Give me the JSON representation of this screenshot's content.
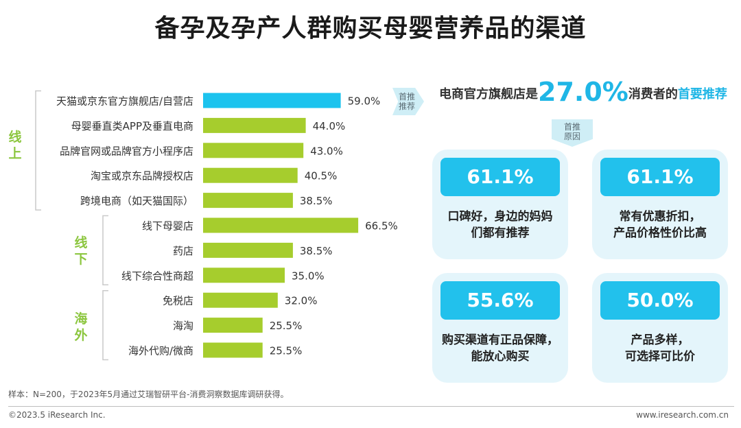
{
  "title": "备孕及孕产人群购买母婴营养品的渠道",
  "chart_data": {
    "type": "bar",
    "orientation": "horizontal",
    "categories": [
      "天猫或京东官方旗舰店/自营店",
      "母婴垂直类APP及垂直电商",
      "品牌官网或品牌官方小程序店",
      "淘宝或京东品牌授权店",
      "跨境电商（如天猫国际）",
      "线下母婴店",
      "药店",
      "线下综合性商超",
      "免税店",
      "海淘",
      "海外代购/微商"
    ],
    "values": [
      59.0,
      44.0,
      43.0,
      40.5,
      38.5,
      66.5,
      38.5,
      35.0,
      32.0,
      25.5,
      25.5
    ],
    "value_labels": [
      "59.0%",
      "44.0%",
      "43.0%",
      "40.5%",
      "38.5%",
      "66.5%",
      "38.5%",
      "35.0%",
      "32.0%",
      "25.5%",
      "25.5%"
    ],
    "groups": [
      {
        "name": "线上",
        "start": 0,
        "end": 4
      },
      {
        "name": "线下",
        "start": 5,
        "end": 7
      },
      {
        "name": "海外",
        "start": 8,
        "end": 10
      }
    ],
    "highlight_index": 0,
    "colors": {
      "highlight": "#1cc3ee",
      "default": "#a6cd2d",
      "group_label": "#8cc63f",
      "bracket": "#c9c9c9"
    }
  },
  "arrow_tag": {
    "line1": "首推",
    "line2": "推荐"
  },
  "headline": {
    "prefix": "电商官方旗舰店是",
    "value": "27.0%",
    "middle": "消费者的",
    "emphasis": "首要推荐"
  },
  "reason_tag": {
    "line1": "首推",
    "line2": "原因"
  },
  "cards": [
    {
      "pct": "61.1%",
      "desc": "口碑好，身边的妈妈\n们都有推荐"
    },
    {
      "pct": "61.1%",
      "desc": "常有优惠折扣，\n产品价格性价比高"
    },
    {
      "pct": "55.6%",
      "desc": "购买渠道有正品保障，\n能放心购买"
    },
    {
      "pct": "50.0%",
      "desc": "产品多样，\n可选择可比价"
    }
  ],
  "footnote": "样本：N=200，于2023年5月通过艾瑞智研平台-消费洞察数据库调研获得。",
  "copyright": "©2023.5 iResearch Inc.",
  "website": "www.iresearch.com.cn"
}
